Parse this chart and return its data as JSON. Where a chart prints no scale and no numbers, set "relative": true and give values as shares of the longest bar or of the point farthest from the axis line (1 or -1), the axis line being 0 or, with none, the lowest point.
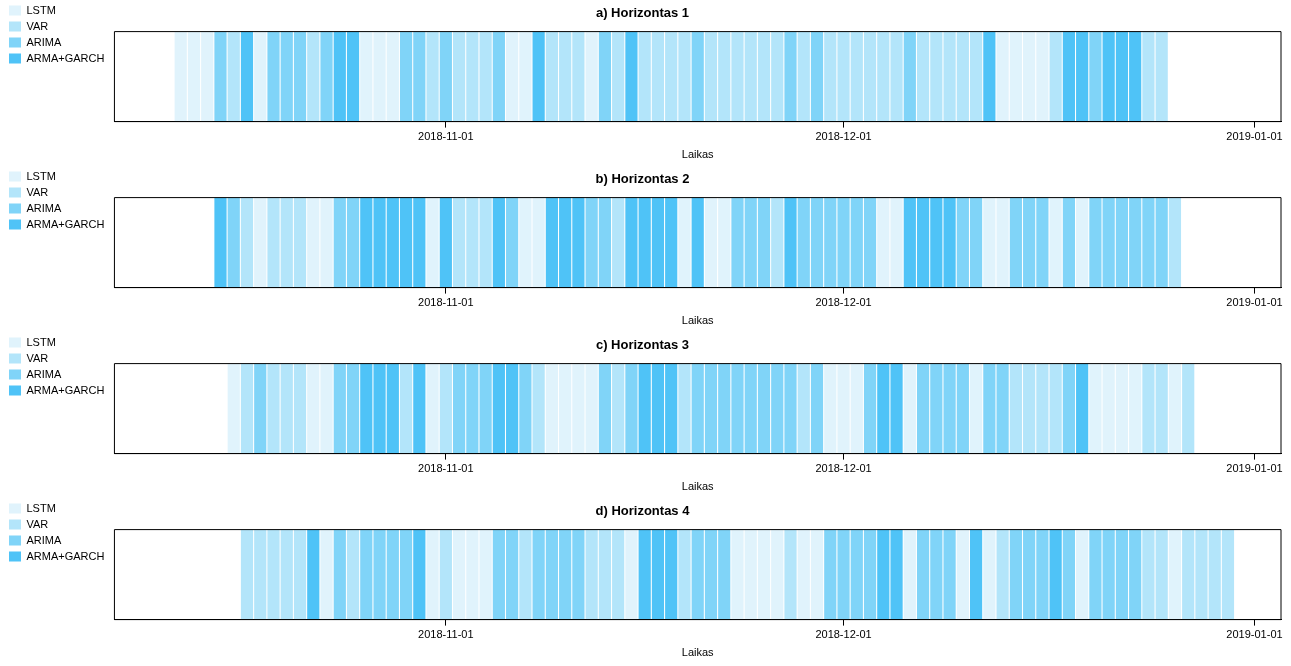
{
  "chart_data": [
    {
      "type": "bar",
      "title": "a) Horizontas 1",
      "xlabel": "Laikas",
      "stacked": true,
      "relative": true,
      "legend": "left",
      "xlim": [
        "2018-10-07",
        "2019-01-03"
      ],
      "xticks": [
        "2018-11-01",
        "2018-12-01",
        "2019-01-01"
      ],
      "x": [
        "2018-10-12",
        "2018-10-13",
        "2018-10-14",
        "2018-10-15",
        "2018-10-16",
        "2018-10-17",
        "2018-10-18",
        "2018-10-19",
        "2018-10-20",
        "2018-10-21",
        "2018-10-22",
        "2018-10-23",
        "2018-10-24",
        "2018-10-25",
        "2018-10-26",
        "2018-10-27",
        "2018-10-28",
        "2018-10-29",
        "2018-10-30",
        "2018-10-31",
        "2018-11-01",
        "2018-11-02",
        "2018-11-03",
        "2018-11-04",
        "2018-11-05",
        "2018-11-06",
        "2018-11-07",
        "2018-11-08",
        "2018-11-09",
        "2018-11-10",
        "2018-11-11",
        "2018-11-12",
        "2018-11-13",
        "2018-11-14",
        "2018-11-15",
        "2018-11-16",
        "2018-11-17",
        "2018-11-18",
        "2018-11-19",
        "2018-11-20",
        "2018-11-21",
        "2018-11-22",
        "2018-11-23",
        "2018-11-24",
        "2018-11-25",
        "2018-11-26",
        "2018-11-27",
        "2018-11-28",
        "2018-11-29",
        "2018-11-30",
        "2018-12-01",
        "2018-12-02",
        "2018-12-03",
        "2018-12-04",
        "2018-12-05",
        "2018-12-06",
        "2018-12-07",
        "2018-12-08",
        "2018-12-09",
        "2018-12-10",
        "2018-12-11",
        "2018-12-12",
        "2018-12-13",
        "2018-12-14",
        "2018-12-15",
        "2018-12-16",
        "2018-12-17",
        "2018-12-18",
        "2018-12-19",
        "2018-12-20",
        "2018-12-21",
        "2018-12-22",
        "2018-12-23",
        "2018-12-24",
        "2018-12-25"
      ],
      "series": [
        {
          "name": "LSTM",
          "color": "#e0f3fc",
          "values": [
            1,
            1,
            1,
            null,
            null,
            null,
            1,
            null,
            null,
            null,
            null,
            null,
            null,
            null,
            1,
            1,
            1,
            null,
            null,
            null,
            null,
            null,
            null,
            null,
            null,
            1,
            1,
            null,
            null,
            null,
            null,
            1,
            null,
            null,
            null,
            null,
            null,
            null,
            null,
            null,
            null,
            null,
            null,
            null,
            null,
            null,
            null,
            null,
            null,
            null,
            null,
            null,
            null,
            null,
            null,
            null,
            null,
            null,
            null,
            null,
            null,
            null,
            1,
            1,
            1,
            1,
            null,
            null,
            null,
            null,
            null,
            null,
            null,
            null,
            null
          ]
        },
        {
          "name": "VAR",
          "color": "#b3e5fa",
          "values": [
            null,
            null,
            null,
            null,
            1,
            null,
            null,
            null,
            null,
            null,
            1,
            null,
            null,
            null,
            null,
            null,
            null,
            null,
            null,
            1,
            null,
            1,
            1,
            1,
            null,
            null,
            null,
            null,
            1,
            1,
            1,
            null,
            null,
            1,
            null,
            1,
            1,
            1,
            1,
            null,
            1,
            1,
            1,
            1,
            1,
            1,
            null,
            1,
            null,
            1,
            1,
            1,
            1,
            1,
            1,
            null,
            1,
            1,
            1,
            1,
            1,
            null,
            null,
            null,
            null,
            null,
            1,
            null,
            null,
            null,
            null,
            null,
            null,
            1,
            1
          ]
        },
        {
          "name": "ARIMA",
          "color": "#80d4f8",
          "values": [
            null,
            null,
            null,
            1,
            null,
            null,
            null,
            1,
            1,
            1,
            null,
            1,
            null,
            null,
            null,
            null,
            null,
            1,
            1,
            null,
            1,
            null,
            null,
            null,
            1,
            null,
            null,
            null,
            null,
            null,
            null,
            null,
            1,
            null,
            null,
            null,
            null,
            null,
            null,
            1,
            null,
            null,
            null,
            null,
            null,
            null,
            1,
            null,
            1,
            null,
            null,
            null,
            null,
            null,
            null,
            1,
            null,
            null,
            null,
            null,
            null,
            null,
            null,
            null,
            null,
            null,
            null,
            null,
            null,
            1,
            null,
            null,
            null,
            null,
            null
          ]
        },
        {
          "name": "ARMA+GARCH",
          "color": "#4fc3f7",
          "values": [
            null,
            null,
            null,
            null,
            null,
            1,
            null,
            null,
            null,
            null,
            null,
            null,
            1,
            1,
            null,
            null,
            null,
            null,
            null,
            null,
            null,
            null,
            null,
            null,
            null,
            null,
            null,
            1,
            null,
            null,
            null,
            null,
            null,
            null,
            1,
            null,
            null,
            null,
            null,
            null,
            null,
            null,
            null,
            null,
            null,
            null,
            null,
            null,
            null,
            null,
            null,
            null,
            null,
            null,
            null,
            null,
            null,
            null,
            null,
            null,
            null,
            1,
            null,
            null,
            null,
            null,
            null,
            1,
            1,
            null,
            1,
            1,
            1,
            null,
            null
          ]
        }
      ]
    },
    {
      "type": "bar",
      "title": "b) Horizontas 2",
      "xlabel": "Laikas",
      "stacked": true,
      "relative": true,
      "legend": "left",
      "xlim": [
        "2018-10-07",
        "2019-01-03"
      ],
      "xticks": [
        "2018-11-01",
        "2018-12-01",
        "2019-01-01"
      ],
      "x": [
        "2018-10-15",
        "2018-10-16",
        "2018-10-17",
        "2018-10-18",
        "2018-10-19",
        "2018-10-20",
        "2018-10-21",
        "2018-10-22",
        "2018-10-23",
        "2018-10-24",
        "2018-10-25",
        "2018-10-26",
        "2018-10-27",
        "2018-10-28",
        "2018-10-29",
        "2018-10-30",
        "2018-10-31",
        "2018-11-01",
        "2018-11-02",
        "2018-11-03",
        "2018-11-04",
        "2018-11-05",
        "2018-11-06",
        "2018-11-07",
        "2018-11-08",
        "2018-11-09",
        "2018-11-10",
        "2018-11-11",
        "2018-11-12",
        "2018-11-13",
        "2018-11-14",
        "2018-11-15",
        "2018-11-16",
        "2018-11-17",
        "2018-11-18",
        "2018-11-19",
        "2018-11-20",
        "2018-11-21",
        "2018-11-22",
        "2018-11-23",
        "2018-11-24",
        "2018-11-25",
        "2018-11-26",
        "2018-11-27",
        "2018-11-28",
        "2018-11-29",
        "2018-11-30",
        "2018-12-01",
        "2018-12-02",
        "2018-12-03",
        "2018-12-04",
        "2018-12-05",
        "2018-12-06",
        "2018-12-07",
        "2018-12-08",
        "2018-12-09",
        "2018-12-10",
        "2018-12-11",
        "2018-12-12",
        "2018-12-13",
        "2018-12-14",
        "2018-12-15",
        "2018-12-16",
        "2018-12-17",
        "2018-12-18",
        "2018-12-19",
        "2018-12-20",
        "2018-12-21",
        "2018-12-22",
        "2018-12-23",
        "2018-12-24",
        "2018-12-25",
        "2018-12-26"
      ],
      "series": [
        {
          "name": "LSTM",
          "color": "#e0f3fc",
          "values": [
            null,
            null,
            null,
            1,
            null,
            null,
            null,
            1,
            1,
            null,
            null,
            null,
            null,
            null,
            null,
            null,
            1,
            null,
            null,
            null,
            null,
            null,
            null,
            1,
            1,
            null,
            null,
            null,
            null,
            null,
            null,
            null,
            null,
            null,
            null,
            1,
            null,
            1,
            1,
            null,
            null,
            null,
            null,
            null,
            null,
            null,
            null,
            null,
            null,
            null,
            1,
            1,
            null,
            null,
            null,
            null,
            null,
            null,
            1,
            1,
            null,
            null,
            null,
            1,
            null,
            1,
            null,
            null,
            null,
            null,
            null,
            null,
            null
          ]
        },
        {
          "name": "VAR",
          "color": "#b3e5fa",
          "values": [
            null,
            null,
            1,
            null,
            1,
            1,
            1,
            null,
            null,
            null,
            null,
            null,
            null,
            null,
            null,
            null,
            null,
            null,
            1,
            1,
            1,
            null,
            null,
            null,
            null,
            null,
            null,
            null,
            null,
            null,
            1,
            null,
            null,
            null,
            null,
            null,
            null,
            null,
            null,
            null,
            null,
            null,
            1,
            null,
            null,
            null,
            null,
            null,
            null,
            null,
            null,
            null,
            null,
            null,
            null,
            null,
            null,
            null,
            null,
            null,
            null,
            null,
            null,
            null,
            null,
            null,
            null,
            null,
            null,
            null,
            null,
            null,
            1
          ]
        },
        {
          "name": "ARIMA",
          "color": "#80d4f8",
          "values": [
            null,
            1,
            null,
            null,
            null,
            null,
            null,
            null,
            null,
            1,
            1,
            null,
            null,
            null,
            null,
            null,
            null,
            null,
            null,
            null,
            null,
            null,
            1,
            null,
            null,
            null,
            null,
            null,
            1,
            1,
            null,
            null,
            null,
            null,
            null,
            null,
            null,
            null,
            null,
            1,
            1,
            1,
            null,
            null,
            1,
            1,
            1,
            1,
            1,
            1,
            null,
            null,
            null,
            null,
            null,
            null,
            1,
            1,
            null,
            null,
            1,
            1,
            1,
            null,
            1,
            null,
            1,
            1,
            1,
            1,
            1,
            1,
            null
          ]
        },
        {
          "name": "ARMA+GARCH",
          "color": "#4fc3f7",
          "values": [
            1,
            null,
            null,
            null,
            null,
            null,
            null,
            null,
            null,
            null,
            null,
            1,
            1,
            1,
            1,
            1,
            null,
            1,
            null,
            null,
            null,
            1,
            null,
            null,
            null,
            1,
            1,
            1,
            null,
            null,
            null,
            1,
            1,
            1,
            1,
            null,
            1,
            null,
            null,
            null,
            null,
            null,
            null,
            1,
            null,
            null,
            null,
            null,
            null,
            null,
            null,
            null,
            1,
            1,
            1,
            1,
            null,
            null,
            null,
            null,
            null,
            null,
            null,
            null,
            null,
            null,
            null,
            null,
            null,
            null,
            null,
            null,
            null
          ]
        }
      ]
    },
    {
      "type": "bar",
      "title": "c) Horizontas 3",
      "xlabel": "Laikas",
      "stacked": true,
      "relative": true,
      "legend": "left",
      "xlim": [
        "2018-10-07",
        "2019-01-03"
      ],
      "xticks": [
        "2018-11-01",
        "2018-12-01",
        "2019-01-01"
      ],
      "x": [
        "2018-10-16",
        "2018-10-17",
        "2018-10-18",
        "2018-10-19",
        "2018-10-20",
        "2018-10-21",
        "2018-10-22",
        "2018-10-23",
        "2018-10-24",
        "2018-10-25",
        "2018-10-26",
        "2018-10-27",
        "2018-10-28",
        "2018-10-29",
        "2018-10-30",
        "2018-10-31",
        "2018-11-01",
        "2018-11-02",
        "2018-11-03",
        "2018-11-04",
        "2018-11-05",
        "2018-11-06",
        "2018-11-07",
        "2018-11-08",
        "2018-11-09",
        "2018-11-10",
        "2018-11-11",
        "2018-11-12",
        "2018-11-13",
        "2018-11-14",
        "2018-11-15",
        "2018-11-16",
        "2018-11-17",
        "2018-11-18",
        "2018-11-19",
        "2018-11-20",
        "2018-11-21",
        "2018-11-22",
        "2018-11-23",
        "2018-11-24",
        "2018-11-25",
        "2018-11-26",
        "2018-11-27",
        "2018-11-28",
        "2018-11-29",
        "2018-11-30",
        "2018-12-01",
        "2018-12-02",
        "2018-12-03",
        "2018-12-04",
        "2018-12-05",
        "2018-12-06",
        "2018-12-07",
        "2018-12-08",
        "2018-12-09",
        "2018-12-10",
        "2018-12-11",
        "2018-12-12",
        "2018-12-13",
        "2018-12-14",
        "2018-12-15",
        "2018-12-16",
        "2018-12-17",
        "2018-12-18",
        "2018-12-19",
        "2018-12-20",
        "2018-12-21",
        "2018-12-22",
        "2018-12-23",
        "2018-12-24",
        "2018-12-25",
        "2018-12-26",
        "2018-12-27"
      ],
      "series": [
        {
          "name": "LSTM",
          "color": "#e0f3fc",
          "values": [
            1,
            null,
            null,
            null,
            null,
            null,
            1,
            1,
            null,
            null,
            null,
            null,
            null,
            null,
            null,
            1,
            null,
            null,
            null,
            null,
            null,
            null,
            null,
            null,
            1,
            1,
            1,
            1,
            null,
            null,
            null,
            null,
            null,
            null,
            null,
            null,
            null,
            null,
            null,
            null,
            null,
            null,
            null,
            null,
            null,
            1,
            1,
            1,
            null,
            null,
            null,
            1,
            null,
            null,
            null,
            null,
            1,
            null,
            null,
            null,
            null,
            null,
            null,
            null,
            null,
            1,
            1,
            1,
            1,
            null,
            null,
            1,
            null
          ]
        },
        {
          "name": "VAR",
          "color": "#b3e5fa",
          "values": [
            null,
            1,
            null,
            1,
            1,
            1,
            null,
            null,
            null,
            null,
            null,
            null,
            null,
            1,
            null,
            null,
            1,
            null,
            null,
            null,
            null,
            null,
            null,
            1,
            null,
            null,
            null,
            null,
            null,
            1,
            null,
            null,
            null,
            null,
            1,
            null,
            null,
            null,
            null,
            null,
            null,
            null,
            null,
            1,
            null,
            null,
            null,
            null,
            null,
            null,
            null,
            null,
            null,
            null,
            null,
            null,
            null,
            null,
            null,
            1,
            1,
            1,
            1,
            null,
            null,
            null,
            null,
            null,
            null,
            1,
            1,
            null,
            1
          ]
        },
        {
          "name": "ARIMA",
          "color": "#80d4f8",
          "values": [
            null,
            null,
            1,
            null,
            null,
            null,
            null,
            null,
            1,
            1,
            null,
            null,
            null,
            null,
            null,
            null,
            null,
            1,
            1,
            1,
            null,
            null,
            1,
            null,
            null,
            null,
            null,
            null,
            1,
            null,
            1,
            null,
            null,
            null,
            null,
            1,
            1,
            1,
            1,
            1,
            1,
            1,
            1,
            null,
            1,
            null,
            null,
            null,
            1,
            null,
            null,
            null,
            1,
            1,
            1,
            1,
            null,
            1,
            1,
            null,
            null,
            null,
            null,
            1,
            null,
            null,
            null,
            null,
            null,
            null,
            null,
            null,
            null
          ]
        },
        {
          "name": "ARMA+GARCH",
          "color": "#4fc3f7",
          "values": [
            null,
            null,
            null,
            null,
            null,
            null,
            null,
            null,
            null,
            null,
            1,
            1,
            1,
            null,
            1,
            null,
            null,
            null,
            null,
            null,
            1,
            1,
            null,
            null,
            null,
            null,
            null,
            null,
            null,
            null,
            null,
            1,
            1,
            1,
            null,
            null,
            null,
            null,
            null,
            null,
            null,
            null,
            null,
            null,
            null,
            null,
            null,
            null,
            null,
            1,
            1,
            null,
            null,
            null,
            null,
            null,
            null,
            null,
            null,
            null,
            null,
            null,
            null,
            null,
            1,
            null,
            null,
            null,
            null,
            null,
            null,
            null,
            null
          ]
        }
      ]
    },
    {
      "type": "bar",
      "title": "d) Horizontas 4",
      "xlabel": "Laikas",
      "stacked": true,
      "relative": true,
      "legend": "left",
      "xlim": [
        "2018-10-07",
        "2019-01-03"
      ],
      "xticks": [
        "2018-11-01",
        "2018-12-01",
        "2019-01-01"
      ],
      "x": [
        "2018-10-17",
        "2018-10-18",
        "2018-10-19",
        "2018-10-20",
        "2018-10-21",
        "2018-10-22",
        "2018-10-23",
        "2018-10-24",
        "2018-10-25",
        "2018-10-26",
        "2018-10-27",
        "2018-10-28",
        "2018-10-29",
        "2018-10-30",
        "2018-10-31",
        "2018-11-01",
        "2018-11-02",
        "2018-11-03",
        "2018-11-04",
        "2018-11-05",
        "2018-11-06",
        "2018-11-07",
        "2018-11-08",
        "2018-11-09",
        "2018-11-10",
        "2018-11-11",
        "2018-11-12",
        "2018-11-13",
        "2018-11-14",
        "2018-11-15",
        "2018-11-16",
        "2018-11-17",
        "2018-11-18",
        "2018-11-19",
        "2018-11-20",
        "2018-11-21",
        "2018-11-22",
        "2018-11-23",
        "2018-11-24",
        "2018-11-25",
        "2018-11-26",
        "2018-11-27",
        "2018-11-28",
        "2018-11-29",
        "2018-11-30",
        "2018-12-01",
        "2018-12-02",
        "2018-12-03",
        "2018-12-04",
        "2018-12-05",
        "2018-12-06",
        "2018-12-07",
        "2018-12-08",
        "2018-12-09",
        "2018-12-10",
        "2018-12-11",
        "2018-12-12",
        "2018-12-13",
        "2018-12-14",
        "2018-12-15",
        "2018-12-16",
        "2018-12-17",
        "2018-12-18",
        "2018-12-19",
        "2018-12-20",
        "2018-12-21",
        "2018-12-22",
        "2018-12-23",
        "2018-12-24",
        "2018-12-25",
        "2018-12-26",
        "2018-12-27",
        "2018-12-28",
        "2018-12-29",
        "2018-12-30"
      ],
      "series": [
        {
          "name": "LSTM",
          "color": "#e0f3fc",
          "values": [
            null,
            null,
            null,
            null,
            null,
            null,
            1,
            null,
            null,
            null,
            null,
            null,
            null,
            null,
            1,
            null,
            1,
            1,
            1,
            null,
            null,
            null,
            null,
            null,
            null,
            null,
            null,
            null,
            null,
            1,
            null,
            null,
            null,
            null,
            null,
            null,
            null,
            1,
            1,
            1,
            1,
            null,
            1,
            1,
            null,
            null,
            null,
            null,
            null,
            null,
            1,
            null,
            null,
            null,
            1,
            null,
            1,
            null,
            null,
            null,
            null,
            null,
            null,
            1,
            null,
            null,
            null,
            null,
            null,
            null,
            1,
            null,
            null,
            null,
            null
          ]
        },
        {
          "name": "VAR",
          "color": "#b3e5fa",
          "values": [
            1,
            1,
            1,
            1,
            1,
            null,
            null,
            null,
            1,
            null,
            null,
            null,
            null,
            null,
            null,
            1,
            null,
            null,
            null,
            null,
            null,
            1,
            null,
            null,
            null,
            null,
            1,
            1,
            1,
            null,
            null,
            null,
            null,
            1,
            null,
            null,
            null,
            null,
            null,
            null,
            null,
            1,
            null,
            null,
            null,
            null,
            null,
            null,
            null,
            null,
            null,
            null,
            null,
            null,
            null,
            null,
            null,
            1,
            null,
            null,
            null,
            null,
            null,
            null,
            null,
            null,
            null,
            null,
            1,
            1,
            null,
            1,
            1,
            1,
            1
          ]
        },
        {
          "name": "ARIMA",
          "color": "#80d4f8",
          "values": [
            null,
            null,
            null,
            null,
            null,
            null,
            null,
            1,
            null,
            1,
            1,
            1,
            1,
            null,
            null,
            null,
            null,
            null,
            null,
            1,
            1,
            null,
            1,
            1,
            1,
            1,
            null,
            null,
            null,
            null,
            null,
            null,
            null,
            null,
            1,
            1,
            1,
            null,
            null,
            null,
            null,
            null,
            null,
            null,
            1,
            1,
            1,
            1,
            null,
            null,
            null,
            1,
            1,
            1,
            null,
            null,
            null,
            null,
            1,
            1,
            1,
            null,
            1,
            null,
            1,
            1,
            1,
            1,
            null,
            null,
            null,
            null,
            null,
            null,
            null
          ]
        },
        {
          "name": "ARMA+GARCH",
          "color": "#4fc3f7",
          "values": [
            null,
            null,
            null,
            null,
            null,
            1,
            null,
            null,
            null,
            null,
            null,
            null,
            null,
            1,
            null,
            null,
            null,
            null,
            null,
            null,
            null,
            null,
            null,
            null,
            null,
            null,
            null,
            null,
            null,
            null,
            1,
            1,
            1,
            null,
            null,
            null,
            null,
            null,
            null,
            null,
            null,
            null,
            null,
            null,
            null,
            null,
            null,
            null,
            1,
            1,
            null,
            null,
            null,
            null,
            null,
            1,
            null,
            null,
            null,
            null,
            null,
            1,
            null,
            null,
            null,
            null,
            null,
            null,
            null,
            null,
            null,
            null,
            null,
            null,
            null
          ]
        }
      ]
    }
  ]
}
